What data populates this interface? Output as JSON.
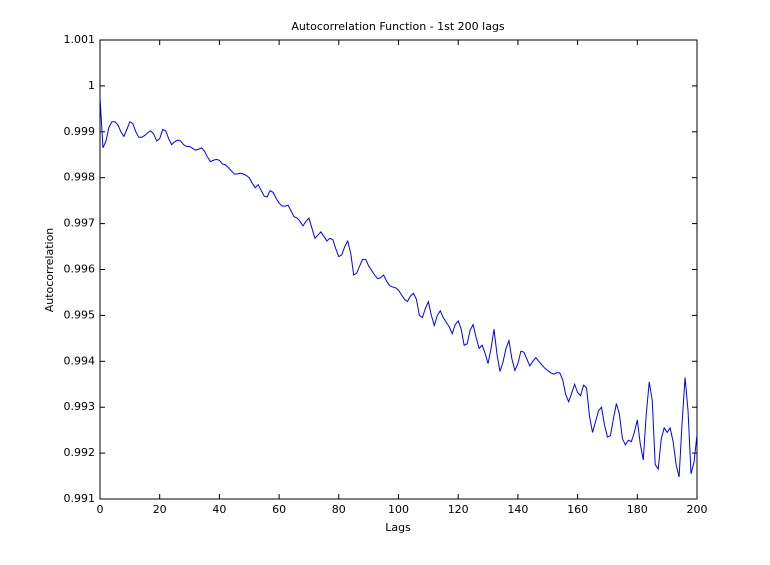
{
  "chart_data": {
    "type": "line",
    "title": "Autocorrelation Function - 1st 200 lags",
    "x_label": "Lags",
    "y_label": "Autocorrelation",
    "x": [
      0,
      1,
      2,
      3,
      4,
      5,
      6,
      7,
      8,
      9,
      10,
      11,
      12,
      13,
      14,
      15,
      16,
      17,
      18,
      19,
      20,
      21,
      22,
      23,
      24,
      25,
      26,
      27,
      28,
      29,
      30,
      31,
      32,
      33,
      34,
      35,
      36,
      37,
      38,
      39,
      40,
      41,
      42,
      43,
      44,
      45,
      46,
      47,
      48,
      49,
      50,
      51,
      52,
      53,
      54,
      55,
      56,
      57,
      58,
      59,
      60,
      61,
      62,
      63,
      64,
      65,
      66,
      67,
      68,
      69,
      70,
      71,
      72,
      73,
      74,
      75,
      76,
      77,
      78,
      79,
      80,
      81,
      82,
      83,
      84,
      85,
      86,
      87,
      88,
      89,
      90,
      91,
      92,
      93,
      94,
      95,
      96,
      97,
      98,
      99,
      100,
      101,
      102,
      103,
      104,
      105,
      106,
      107,
      108,
      109,
      110,
      111,
      112,
      113,
      114,
      115,
      116,
      117,
      118,
      119,
      120,
      121,
      122,
      123,
      124,
      125,
      126,
      127,
      128,
      129,
      130,
      131,
      132,
      133,
      134,
      135,
      136,
      137,
      138,
      139,
      140,
      141,
      142,
      143,
      144,
      145,
      146,
      147,
      148,
      149,
      150,
      151,
      152,
      153,
      154,
      155,
      156,
      157,
      158,
      159,
      160,
      161,
      162,
      163,
      164,
      165,
      166,
      167,
      168,
      169,
      170,
      171,
      172,
      173,
      174,
      175,
      176,
      177,
      178,
      179,
      180,
      181,
      182,
      183,
      184,
      185,
      186,
      187,
      188,
      189,
      190,
      191,
      192,
      193,
      194,
      195,
      196,
      197,
      198,
      199,
      200
    ],
    "series": [
      {
        "color": "#0000ff",
        "values": [
          0.99975,
          0.99865,
          0.9988,
          0.9991,
          0.99922,
          0.99922,
          0.99915,
          0.999,
          0.9989,
          0.99905,
          0.99922,
          0.99918,
          0.999,
          0.99888,
          0.99888,
          0.99892,
          0.99898,
          0.99902,
          0.99895,
          0.9988,
          0.99885,
          0.99905,
          0.99902,
          0.99885,
          0.99872,
          0.99878,
          0.99882,
          0.9988,
          0.99872,
          0.99868,
          0.99868,
          0.99864,
          0.9986,
          0.99862,
          0.99865,
          0.99858,
          0.99845,
          0.99835,
          0.99838,
          0.9984,
          0.99838,
          0.9983,
          0.99828,
          0.99822,
          0.99815,
          0.99808,
          0.99808,
          0.9981,
          0.99808,
          0.99805,
          0.998,
          0.99788,
          0.99778,
          0.99785,
          0.99772,
          0.9976,
          0.99758,
          0.99772,
          0.99768,
          0.99755,
          0.99745,
          0.99738,
          0.99738,
          0.9974,
          0.99728,
          0.99715,
          0.99712,
          0.99705,
          0.99695,
          0.99705,
          0.99712,
          0.9969,
          0.99668,
          0.99675,
          0.99682,
          0.99672,
          0.99662,
          0.99668,
          0.99665,
          0.99645,
          0.99628,
          0.99632,
          0.9965,
          0.99662,
          0.99635,
          0.99588,
          0.99592,
          0.99608,
          0.99622,
          0.99622,
          0.99608,
          0.99598,
          0.99588,
          0.9958,
          0.99582,
          0.99588,
          0.99575,
          0.99565,
          0.99562,
          0.9956,
          0.99555,
          0.99545,
          0.99535,
          0.9953,
          0.99542,
          0.99548,
          0.99535,
          0.995,
          0.99495,
          0.99515,
          0.9953,
          0.995,
          0.99478,
          0.995,
          0.9951,
          0.99495,
          0.99485,
          0.99475,
          0.9946,
          0.9948,
          0.99488,
          0.9947,
          0.99435,
          0.99438,
          0.99468,
          0.9948,
          0.99452,
          0.99428,
          0.99435,
          0.99418,
          0.99395,
          0.99428,
          0.9947,
          0.99415,
          0.99378,
          0.99398,
          0.99428,
          0.99445,
          0.99405,
          0.9938,
          0.99395,
          0.99422,
          0.9942,
          0.99405,
          0.9939,
          0.994,
          0.99408,
          0.994,
          0.99392,
          0.99385,
          0.9938,
          0.99375,
          0.99372,
          0.99375,
          0.99375,
          0.9936,
          0.99328,
          0.99312,
          0.9933,
          0.9935,
          0.99332,
          0.99325,
          0.99348,
          0.99342,
          0.9928,
          0.99245,
          0.99268,
          0.99292,
          0.993,
          0.99262,
          0.99235,
          0.99238,
          0.99275,
          0.99308,
          0.99285,
          0.99232,
          0.99218,
          0.99228,
          0.99225,
          0.99245,
          0.99272,
          0.9922,
          0.99185,
          0.99285,
          0.99355,
          0.99315,
          0.99175,
          0.99165,
          0.9923,
          0.99255,
          0.99245,
          0.99255,
          0.99225,
          0.99175,
          0.99148,
          0.99265,
          0.99365,
          0.99292,
          0.99155,
          0.9918,
          0.9924
        ]
      }
    ],
    "xlim": [
      0,
      200
    ],
    "xticks": [
      0,
      20,
      40,
      60,
      80,
      100,
      120,
      140,
      160,
      180,
      200
    ],
    "ylim": [
      0.991,
      1.001
    ],
    "yticks": [
      0.991,
      0.992,
      0.993,
      0.994,
      0.995,
      0.996,
      0.997,
      0.998,
      0.999,
      1,
      1.001
    ]
  }
}
